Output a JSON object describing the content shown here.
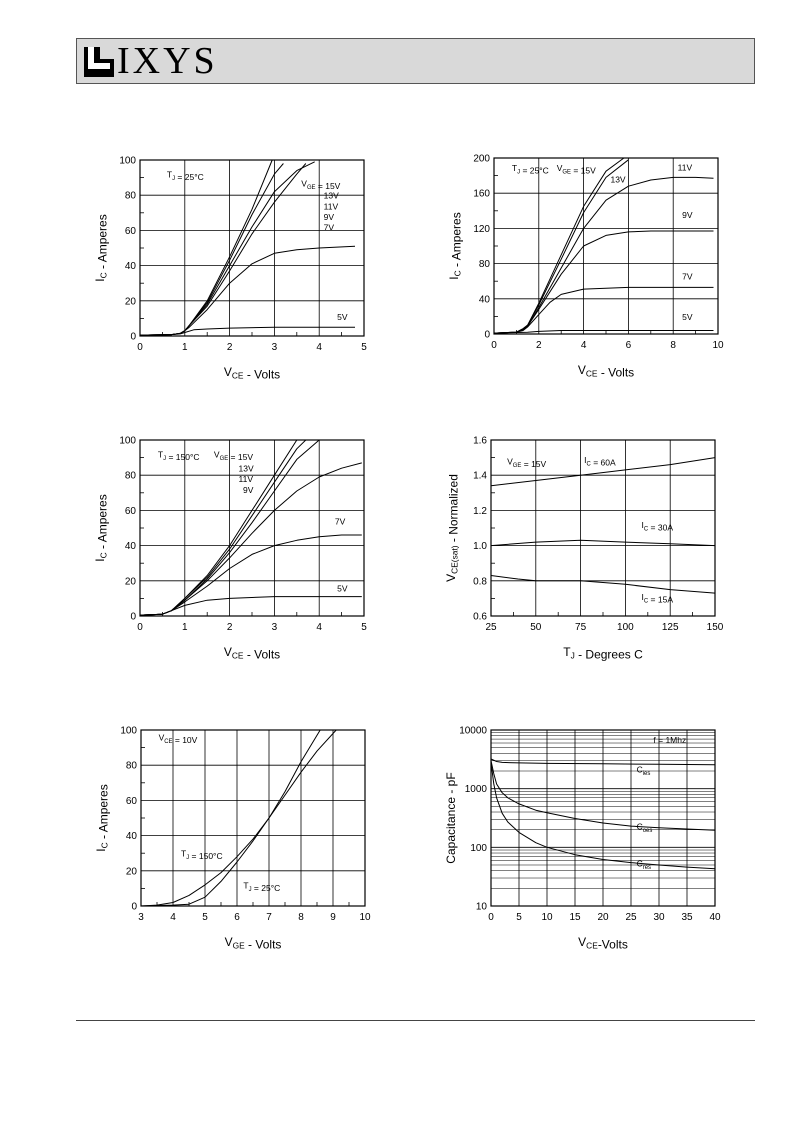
{
  "header": {
    "brand": "IXYS"
  },
  "chart_data": [
    {
      "type": "line",
      "title": "",
      "xlabel": "VCE - Volts",
      "ylabel": "IC - Amperes",
      "xlim": [
        0,
        5
      ],
      "ylim": [
        0,
        100
      ],
      "xticks": [
        "0",
        "1",
        "2",
        "3",
        "4",
        "5"
      ],
      "yticks": [
        "0",
        "20",
        "40",
        "60",
        "80",
        "100"
      ],
      "grid": true,
      "annotations": [
        {
          "text": "TJ = 25°C",
          "x": 0.6,
          "y": 90
        },
        {
          "text": "VGE = 15V",
          "x": 3.6,
          "y": 85
        },
        {
          "text": "13V",
          "x": 4.1,
          "y": 78
        },
        {
          "text": "11V",
          "x": 4.1,
          "y": 72
        },
        {
          "text": "9V",
          "x": 4.1,
          "y": 66
        },
        {
          "text": "7V",
          "x": 4.1,
          "y": 60
        },
        {
          "text": "5V",
          "x": 4.4,
          "y": 9
        }
      ],
      "series": [
        {
          "x": [
            0,
            0.7,
            0.9,
            1.0,
            1.1,
            1.5,
            2.0,
            2.5,
            2.95
          ],
          "y": [
            0.5,
            0.8,
            1.5,
            3,
            6,
            20,
            45,
            72,
            100
          ]
        },
        {
          "x": [
            0,
            0.7,
            0.9,
            1.0,
            1.1,
            1.5,
            2.0,
            2.5,
            3.0,
            3.2
          ],
          "y": [
            0.5,
            0.8,
            1.5,
            3,
            6,
            19,
            43,
            69,
            92,
            98
          ]
        },
        {
          "x": [
            0,
            0.7,
            0.9,
            1.0,
            1.1,
            1.5,
            2.0,
            2.5,
            3.0,
            3.5,
            3.9
          ],
          "y": [
            0.5,
            0.8,
            1.5,
            3,
            6,
            18,
            40,
            62,
            82,
            94,
            99
          ]
        },
        {
          "x": [
            0,
            0.7,
            0.9,
            1.0,
            1.1,
            1.5,
            2.0,
            2.5,
            3.0,
            3.5,
            3.7
          ],
          "y": [
            0.5,
            0.8,
            1.5,
            3,
            6,
            17,
            37,
            58,
            76,
            92,
            98
          ]
        },
        {
          "x": [
            0,
            0.7,
            0.9,
            1.0,
            1.1,
            1.5,
            2.0,
            2.5,
            3.0,
            3.5,
            4.0,
            4.8
          ],
          "y": [
            0.5,
            0.8,
            1.5,
            3,
            5,
            15,
            30,
            41,
            47,
            49,
            50,
            51
          ]
        },
        {
          "x": [
            0,
            0.7,
            0.9,
            1.0,
            1.2,
            1.5,
            2.0,
            3.0,
            4.0,
            4.8
          ],
          "y": [
            0.5,
            0.8,
            1.2,
            2,
            3.5,
            4,
            4.5,
            5,
            5,
            5
          ]
        }
      ]
    },
    {
      "type": "line",
      "title": "",
      "xlabel": "VCE - Volts",
      "ylabel": "IC - Amperes",
      "xlim": [
        0,
        10
      ],
      "ylim": [
        0,
        200
      ],
      "xticks": [
        "0",
        "2",
        "4",
        "6",
        "8",
        "10"
      ],
      "yticks": [
        "0",
        "40",
        "80",
        "120",
        "160",
        "200"
      ],
      "grid": true,
      "annotations": [
        {
          "text": "TJ = 25°C",
          "x": 0.8,
          "y": 185
        },
        {
          "text": "VGE = 15V",
          "x": 2.8,
          "y": 185
        },
        {
          "text": "13V",
          "x": 5.2,
          "y": 172
        },
        {
          "text": "11V",
          "x": 8.2,
          "y": 186
        },
        {
          "text": "9V",
          "x": 8.4,
          "y": 132
        },
        {
          "text": "7V",
          "x": 8.4,
          "y": 62
        },
        {
          "text": "5V",
          "x": 8.4,
          "y": 16
        }
      ],
      "series": [
        {
          "x": [
            0,
            1.0,
            1.3,
            1.5,
            2,
            3,
            4,
            5,
            5.8
          ],
          "y": [
            1,
            2,
            6,
            10,
            35,
            90,
            145,
            185,
            200
          ]
        },
        {
          "x": [
            0,
            1.0,
            1.3,
            1.5,
            2,
            3,
            4,
            5,
            6.0
          ],
          "y": [
            1,
            2,
            6,
            10,
            33,
            85,
            138,
            178,
            198
          ]
        },
        {
          "x": [
            0,
            1.0,
            1.3,
            1.5,
            2,
            3,
            4,
            5,
            6,
            7,
            8,
            9,
            9.8
          ],
          "y": [
            1,
            2,
            5,
            9,
            30,
            75,
            120,
            152,
            168,
            175,
            178,
            178,
            177
          ]
        },
        {
          "x": [
            0,
            1.0,
            1.3,
            1.5,
            2,
            3,
            4,
            5,
            6,
            7,
            8,
            9,
            9.8
          ],
          "y": [
            1,
            2,
            5,
            9,
            28,
            68,
            100,
            112,
            116,
            117,
            117,
            117,
            117
          ]
        },
        {
          "x": [
            0,
            1.0,
            1.3,
            1.5,
            2,
            2.5,
            3,
            4,
            5,
            6,
            7,
            8,
            9,
            9.8
          ],
          "y": [
            1,
            2,
            4,
            8,
            22,
            36,
            45,
            51,
            52,
            53,
            53,
            53,
            53,
            53
          ]
        },
        {
          "x": [
            0,
            1.5,
            2,
            3,
            4,
            6,
            8,
            9.8
          ],
          "y": [
            1,
            2,
            3,
            4,
            4,
            4,
            4,
            4
          ]
        }
      ]
    },
    {
      "type": "line",
      "title": "",
      "xlabel": "VCE - Volts",
      "ylabel": "IC - Amperes",
      "xlim": [
        0,
        5
      ],
      "ylim": [
        0,
        100
      ],
      "xticks": [
        "0",
        "1",
        "2",
        "3",
        "4",
        "5"
      ],
      "yticks": [
        "0",
        "20",
        "40",
        "60",
        "80",
        "100"
      ],
      "grid": true,
      "annotations": [
        {
          "text": "TJ = 150°C",
          "x": 0.4,
          "y": 90
        },
        {
          "text": "VGE = 15V",
          "x": 1.65,
          "y": 90
        },
        {
          "text": "13V",
          "x": 2.2,
          "y": 82
        },
        {
          "text": "11V",
          "x": 2.2,
          "y": 76
        },
        {
          "text": "9V",
          "x": 2.3,
          "y": 70
        },
        {
          "text": "7V",
          "x": 4.35,
          "y": 52
        },
        {
          "text": "5V",
          "x": 4.4,
          "y": 14
        }
      ],
      "series": [
        {
          "x": [
            0,
            0.5,
            0.7,
            1.0,
            1.5,
            2.0,
            2.5,
            3.0,
            3.5
          ],
          "y": [
            0.5,
            1,
            3,
            10,
            23,
            40,
            60,
            80,
            100
          ]
        },
        {
          "x": [
            0,
            0.5,
            0.7,
            1.0,
            1.5,
            2.0,
            2.5,
            3.0,
            3.5,
            3.7
          ],
          "y": [
            0.5,
            1,
            3,
            10,
            22,
            38,
            57,
            76,
            95,
            100
          ]
        },
        {
          "x": [
            0,
            0.5,
            0.7,
            1.0,
            1.5,
            2.0,
            2.5,
            3.0,
            3.5,
            4.0
          ],
          "y": [
            0.5,
            1,
            3,
            9,
            21,
            36,
            53,
            71,
            89,
            100
          ]
        },
        {
          "x": [
            0,
            0.5,
            0.7,
            1.0,
            1.5,
            2.0,
            2.5,
            3.0,
            3.5,
            4.0,
            4.5,
            4.95
          ],
          "y": [
            0.5,
            1,
            3,
            9,
            20,
            33,
            47,
            60,
            71,
            79,
            84,
            87
          ]
        },
        {
          "x": [
            0,
            0.5,
            0.7,
            1.0,
            1.5,
            2.0,
            2.5,
            3.0,
            3.5,
            4.0,
            4.5,
            4.95
          ],
          "y": [
            0.5,
            1,
            3,
            8,
            17,
            27,
            35,
            40,
            43,
            45,
            46,
            46
          ]
        },
        {
          "x": [
            0,
            0.5,
            0.7,
            1.0,
            1.5,
            2.0,
            3.0,
            4.0,
            4.95
          ],
          "y": [
            0.5,
            1,
            3,
            6,
            9,
            10,
            11,
            11,
            11
          ]
        }
      ]
    },
    {
      "type": "line",
      "title": "",
      "xlabel": "TJ - Degrees C",
      "ylabel": "VCE(sat) - Normalized",
      "xlim": [
        25,
        150
      ],
      "ylim": [
        0.6,
        1.6
      ],
      "xticks": [
        "25",
        "50",
        "75",
        "100",
        "125",
        "150"
      ],
      "yticks": [
        "0.6",
        "0.8",
        "1.0",
        "1.2",
        "1.4",
        "1.6"
      ],
      "grid": true,
      "annotations": [
        {
          "text": "VGE = 15V",
          "x": 34,
          "y": 1.46
        },
        {
          "text": "IC = 60A",
          "x": 77,
          "y": 1.47
        },
        {
          "text": "IC = 30A",
          "x": 109,
          "y": 1.1
        },
        {
          "text": "IC = 15A",
          "x": 109,
          "y": 0.69
        }
      ],
      "series": [
        {
          "x": [
            25,
            50,
            75,
            100,
            125,
            150
          ],
          "y": [
            1.34,
            1.37,
            1.4,
            1.43,
            1.46,
            1.5
          ]
        },
        {
          "x": [
            25,
            50,
            75,
            100,
            125,
            150
          ],
          "y": [
            1.0,
            1.02,
            1.03,
            1.02,
            1.01,
            1.0
          ]
        },
        {
          "x": [
            25,
            40,
            50,
            75,
            100,
            125,
            150
          ],
          "y": [
            0.83,
            0.81,
            0.8,
            0.8,
            0.78,
            0.75,
            0.73
          ]
        }
      ]
    },
    {
      "type": "line",
      "title": "",
      "xlabel": "VGE - Volts",
      "ylabel": "IC - Amperes",
      "xlim": [
        3,
        10
      ],
      "ylim": [
        0,
        100
      ],
      "xticks": [
        "3",
        "4",
        "5",
        "6",
        "7",
        "8",
        "9",
        "10"
      ],
      "yticks": [
        "0",
        "20",
        "40",
        "60",
        "80",
        "100"
      ],
      "grid": true,
      "annotations": [
        {
          "text": "VCE = 10V",
          "x": 3.55,
          "y": 94
        },
        {
          "text": "TJ = 150°C",
          "x": 4.25,
          "y": 28
        },
        {
          "text": "TJ = 25°C",
          "x": 6.2,
          "y": 10
        }
      ],
      "series": [
        {
          "x": [
            3,
            3.5,
            4.0,
            4.5,
            5.0,
            5.5,
            6.0,
            6.5,
            7.0,
            7.5,
            8.0,
            8.6
          ],
          "y": [
            0,
            0.5,
            2,
            6,
            12,
            19,
            28,
            38,
            50,
            65,
            82,
            100
          ]
        },
        {
          "x": [
            3,
            4.0,
            4.5,
            5.0,
            5.5,
            6.0,
            6.5,
            7.0,
            7.5,
            8.0,
            8.5,
            9.1
          ],
          "y": [
            0,
            0.5,
            1,
            5,
            14,
            25,
            37,
            50,
            63,
            76,
            88,
            100
          ]
        }
      ]
    },
    {
      "type": "line",
      "title": "",
      "xlabel": "VCE-Volts",
      "ylabel": "Capacitance - pF",
      "xlim": [
        0,
        40
      ],
      "ylim": [
        10,
        10000
      ],
      "yscale": "log",
      "xticks": [
        "0",
        "5",
        "10",
        "15",
        "20",
        "25",
        "30",
        "35",
        "40"
      ],
      "yticks": [
        "10",
        "100",
        "1000",
        "10000"
      ],
      "grid": true,
      "annotations": [
        {
          "text": "f = 1Mhz",
          "x": 29,
          "y": 6000
        },
        {
          "text": "Cies",
          "x": 26,
          "y": 1900
        },
        {
          "text": "Coes",
          "x": 26,
          "y": 200
        },
        {
          "text": "Cres",
          "x": 26,
          "y": 47
        }
      ],
      "series": [
        {
          "x": [
            0,
            1,
            2,
            5,
            10,
            20,
            30,
            40
          ],
          "y": [
            3200,
            2900,
            2800,
            2750,
            2700,
            2650,
            2600,
            2550
          ]
        },
        {
          "x": [
            0,
            0.5,
            1,
            2,
            3,
            5,
            8,
            10,
            15,
            20,
            25,
            30,
            35,
            40
          ],
          "y": [
            3000,
            1800,
            1200,
            850,
            700,
            550,
            430,
            390,
            310,
            260,
            230,
            215,
            205,
            195
          ]
        },
        {
          "x": [
            0,
            0.5,
            1,
            2,
            3,
            5,
            8,
            10,
            15,
            20,
            25,
            30,
            35,
            40
          ],
          "y": [
            2800,
            1200,
            700,
            380,
            270,
            180,
            120,
            100,
            75,
            62,
            55,
            50,
            46,
            43
          ]
        }
      ]
    }
  ]
}
